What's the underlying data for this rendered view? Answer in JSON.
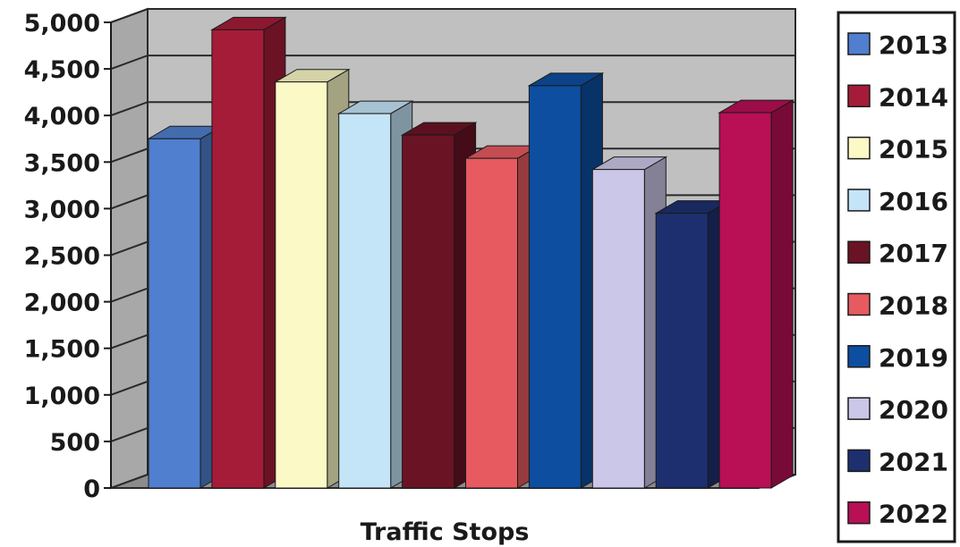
{
  "chart_data": {
    "type": "bar",
    "categories": [
      "Traffic Stops"
    ],
    "series": [
      {
        "name": "2013",
        "values": [
          3750
        ],
        "color": "#4f7fce"
      },
      {
        "name": "2014",
        "values": [
          4920
        ],
        "color": "#a51c38"
      },
      {
        "name": "2015",
        "values": [
          4360
        ],
        "color": "#fbf9c6"
      },
      {
        "name": "2016",
        "values": [
          4020
        ],
        "color": "#c4e4f8"
      },
      {
        "name": "2017",
        "values": [
          3790
        ],
        "color": "#6a1325"
      },
      {
        "name": "2018",
        "values": [
          3540
        ],
        "color": "#e65a60"
      },
      {
        "name": "2019",
        "values": [
          4320
        ],
        "color": "#0d4ea0"
      },
      {
        "name": "2020",
        "values": [
          3420
        ],
        "color": "#cbc7e8"
      },
      {
        "name": "2021",
        "values": [
          2950
        ],
        "color": "#1d2f6e"
      },
      {
        "name": "2022",
        "values": [
          4030
        ],
        "color": "#b80f55"
      }
    ],
    "xlabel": "Traffic Stops",
    "ylabel": "",
    "ylim": [
      0,
      5000
    ],
    "yticks": [
      0,
      500,
      1000,
      1500,
      2000,
      2500,
      3000,
      3500,
      4000,
      4500,
      5000
    ],
    "ytick_labels": [
      "0",
      "500",
      "1,000",
      "1,500",
      "2,000",
      "2,500",
      "3,000",
      "3,500",
      "4,000",
      "4,500",
      "5,000"
    ],
    "grid": true,
    "legend": "right",
    "style": "3d-clustered-column",
    "wall_color": "#c0c0c0"
  }
}
